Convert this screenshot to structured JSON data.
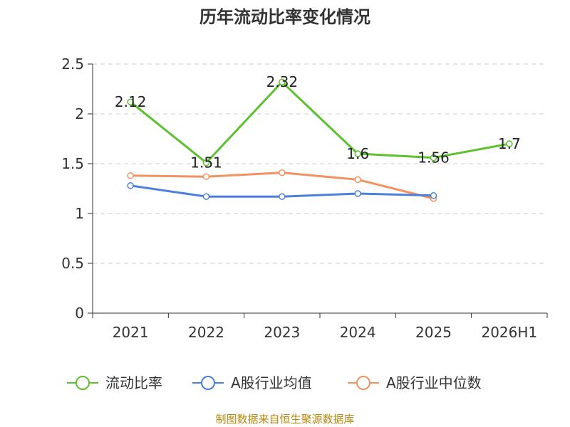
{
  "chart_data": {
    "type": "line",
    "title": "历年流动比率变化情况",
    "categories": [
      "2021",
      "2022",
      "2023",
      "2024",
      "2025",
      "2026H1"
    ],
    "ylim": [
      0,
      2.5
    ],
    "yticks": [
      "0",
      "0.5",
      "1",
      "1.5",
      "2",
      "2.5"
    ],
    "grid": true,
    "legend_position": "bottom",
    "series": [
      {
        "name": "流动比率",
        "color": "#5cc12e",
        "values": [
          2.12,
          1.51,
          2.32,
          1.6,
          1.56,
          1.7
        ],
        "labels": [
          "2.12",
          "1.51",
          "2.32",
          "1.6",
          "1.56",
          "1.7"
        ]
      },
      {
        "name": "A股行业均值",
        "color": "#4a7fdd",
        "values": [
          1.28,
          1.17,
          1.17,
          1.2,
          1.18,
          null
        ]
      },
      {
        "name": "A股行业中位数",
        "color": "#f39260",
        "values": [
          1.38,
          1.37,
          1.41,
          1.34,
          1.15,
          null
        ]
      }
    ]
  },
  "source": "制图数据来自恒生聚源数据库"
}
